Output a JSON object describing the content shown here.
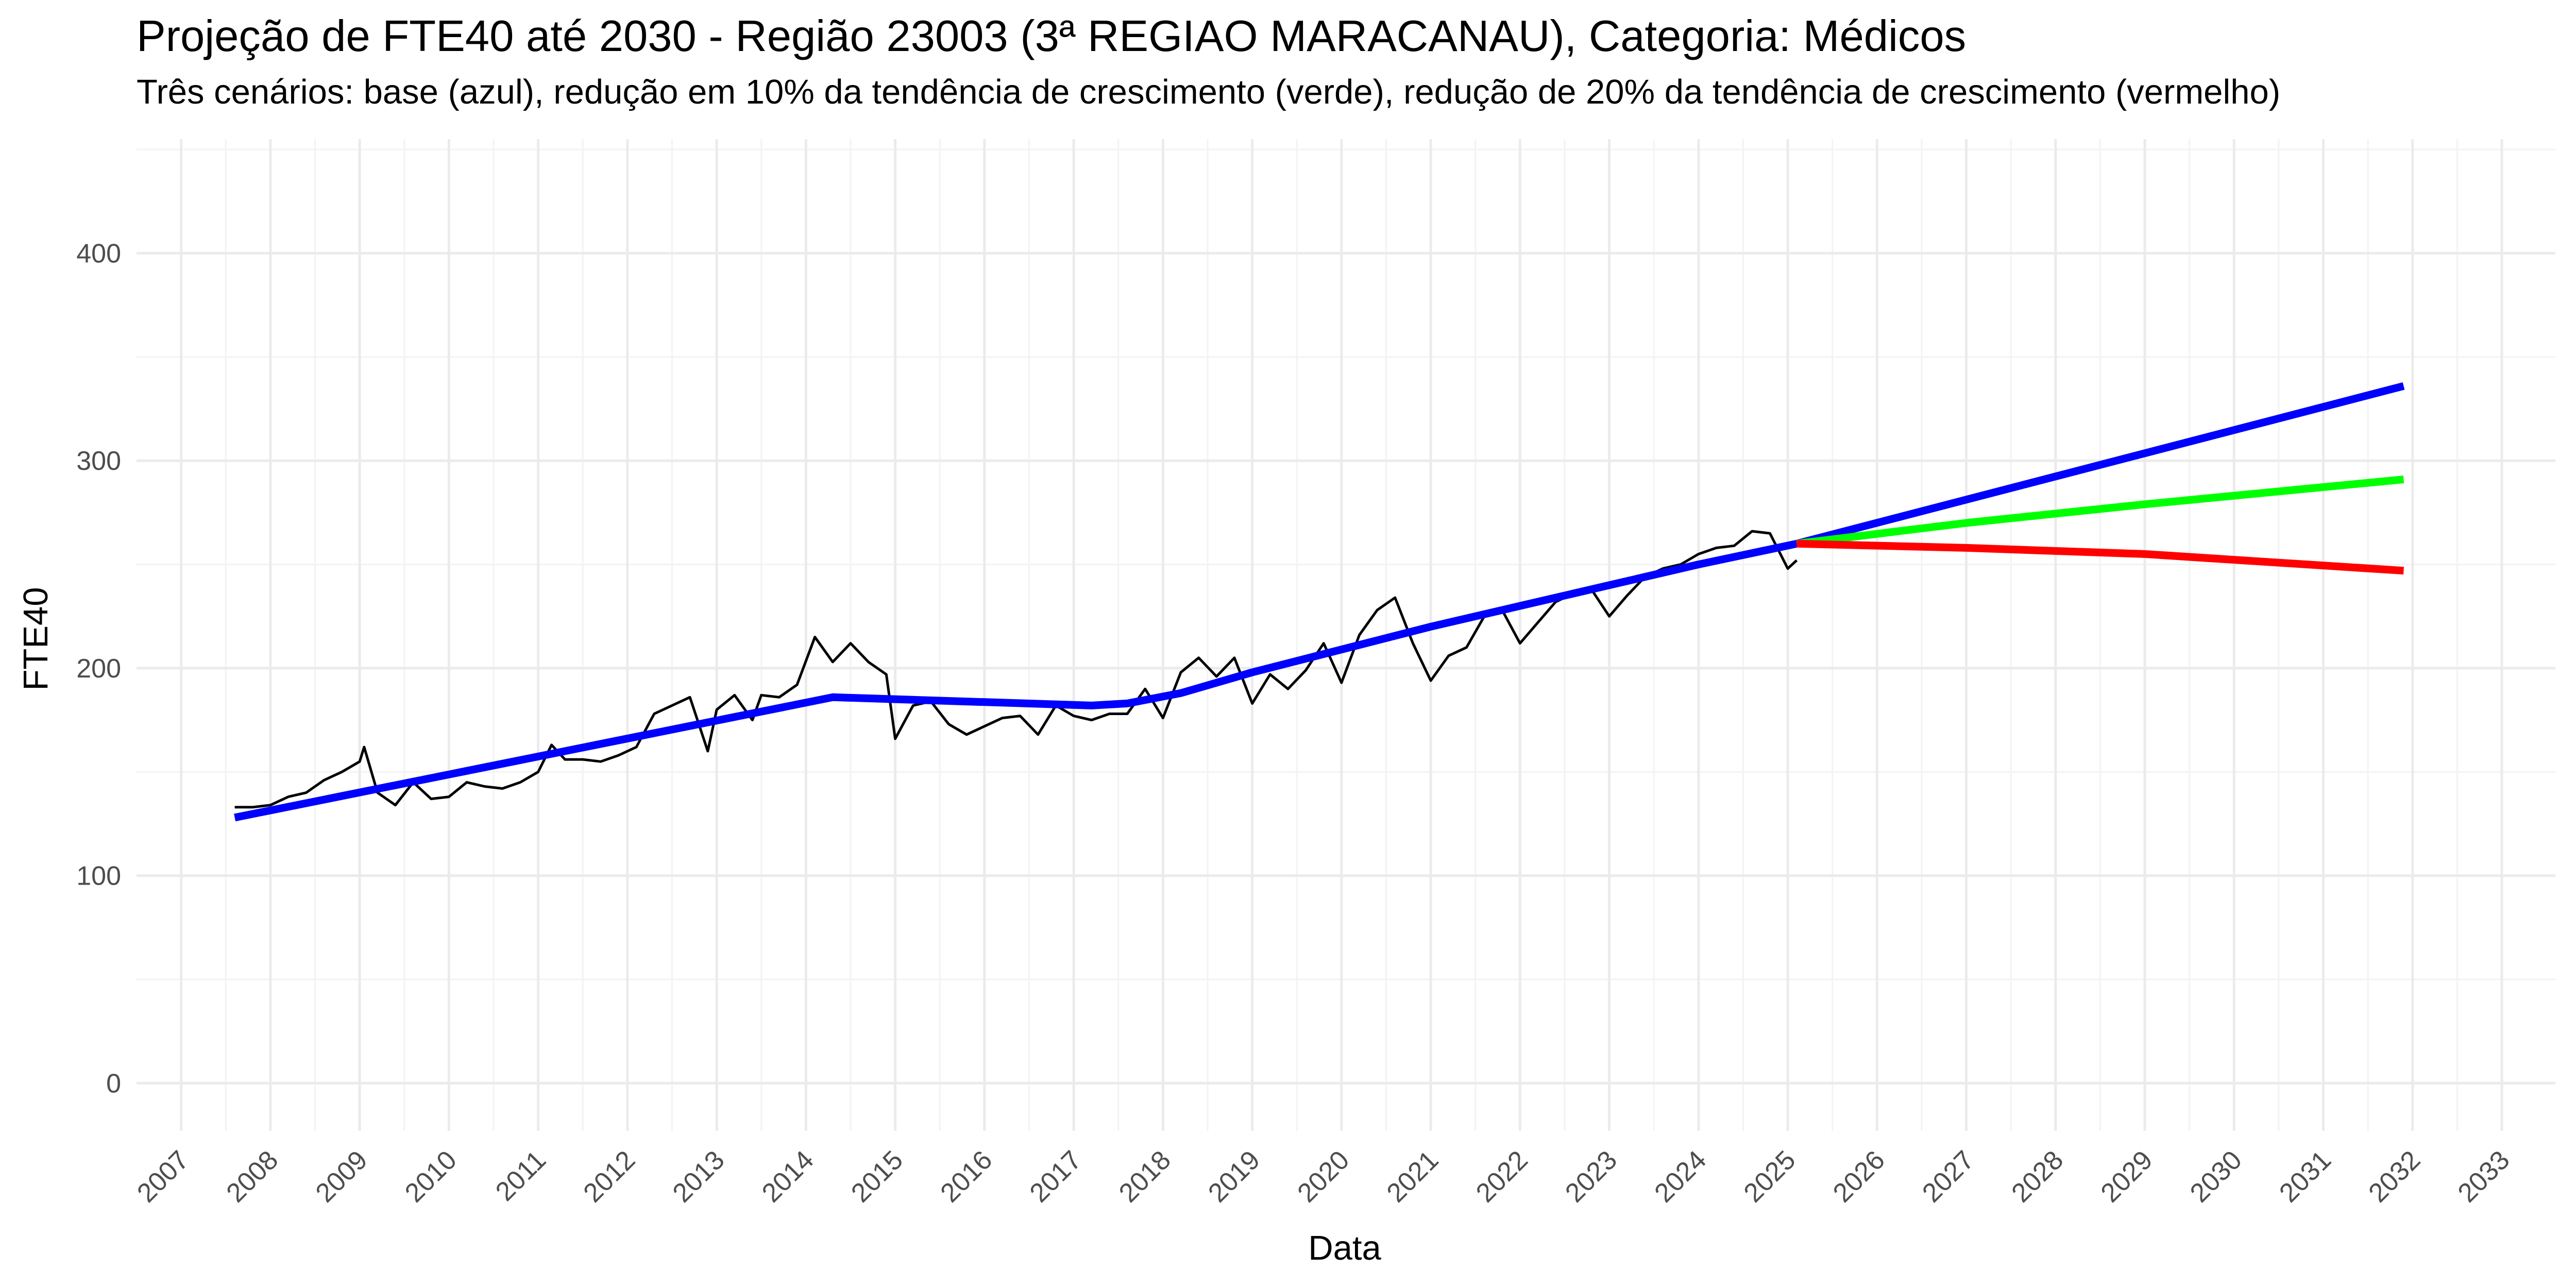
{
  "chart_data": {
    "type": "line",
    "title": "Projeção de FTE40 até 2030 - Região 23003 (3ª REGIAO MARACANAU), Categoria: Médicos",
    "subtitle": "Três cenários: base (azul), redução em 10% da tendência de crescimento (verde), redução de 20% da tendência de crescimento (vermelho)",
    "xlabel": "Data",
    "ylabel": "FTE40",
    "xlim": [
      2006.5,
      2033.6
    ],
    "ylim": [
      -23,
      455
    ],
    "x_ticks": [
      2007,
      2008,
      2009,
      2010,
      2011,
      2012,
      2013,
      2014,
      2015,
      2016,
      2017,
      2018,
      2019,
      2020,
      2021,
      2022,
      2023,
      2024,
      2025,
      2026,
      2027,
      2028,
      2029,
      2030,
      2031,
      2032,
      2033
    ],
    "x_tick_labels": [
      "2007",
      "2008",
      "2009",
      "2010",
      "2011",
      "2012",
      "2013",
      "2014",
      "2015",
      "2016",
      "2017",
      "2018",
      "2019",
      "2020",
      "2021",
      "2022",
      "2023",
      "2024",
      "2025",
      "2026",
      "2027",
      "2028",
      "2029",
      "2030",
      "2031",
      "2032",
      "2033"
    ],
    "y_ticks": [
      0,
      100,
      200,
      300,
      400
    ],
    "y_tick_labels": [
      "0",
      "100",
      "200",
      "300",
      "400"
    ],
    "grid": true,
    "series": [
      {
        "color": "#000000",
        "stroke": "thin",
        "x": [
          2007.6,
          2007.8,
          2008.0,
          2008.2,
          2008.4,
          2008.6,
          2008.8,
          2009.0,
          2009.05,
          2009.2,
          2009.4,
          2009.6,
          2009.8,
          2010.0,
          2010.2,
          2010.4,
          2010.6,
          2010.8,
          2011.0,
          2011.15,
          2011.3,
          2011.5,
          2011.7,
          2011.9,
          2012.1,
          2012.3,
          2012.5,
          2012.7,
          2012.9,
          2013.0,
          2013.2,
          2013.4,
          2013.5,
          2013.7,
          2013.9,
          2014.1,
          2014.3,
          2014.5,
          2014.7,
          2014.9,
          2015.0,
          2015.2,
          2015.4,
          2015.6,
          2015.8,
          2016.0,
          2016.2,
          2016.4,
          2016.6,
          2016.8,
          2017.0,
          2017.2,
          2017.4,
          2017.6,
          2017.8,
          2018.0,
          2018.2,
          2018.4,
          2018.6,
          2018.8,
          2019.0,
          2019.2,
          2019.4,
          2019.6,
          2019.8,
          2020.0,
          2020.2,
          2020.4,
          2020.6,
          2020.8,
          2021.0,
          2021.2,
          2021.4,
          2021.6,
          2021.8,
          2022.0,
          2022.2,
          2022.4,
          2022.6,
          2022.8,
          2023.0,
          2023.2,
          2023.4,
          2023.6,
          2023.8,
          2024.0,
          2024.2,
          2024.4,
          2024.6,
          2024.8,
          2025.0,
          2025.1
        ],
        "values": [
          133,
          133,
          134,
          138,
          140,
          146,
          150,
          155,
          162,
          140,
          134,
          145,
          137,
          138,
          145,
          143,
          142,
          145,
          150,
          163,
          156,
          156,
          155,
          158,
          162,
          178,
          182,
          186,
          160,
          180,
          187,
          175,
          187,
          186,
          192,
          215,
          203,
          212,
          203,
          197,
          166,
          182,
          184,
          173,
          168,
          172,
          176,
          177,
          168,
          182,
          177,
          175,
          178,
          178,
          190,
          176,
          198,
          205,
          196,
          205,
          183,
          197,
          190,
          199,
          212,
          193,
          216,
          228,
          234,
          212,
          194,
          206,
          210,
          225,
          228,
          212,
          222,
          232,
          236,
          238,
          225,
          235,
          244,
          248,
          250,
          255,
          258,
          259,
          266,
          265,
          248,
          252
        ]
      },
      {
        "color": "#0000ff",
        "stroke": "thick",
        "x": [
          2007.6,
          2014.3,
          2017.2,
          2017.6,
          2018.2,
          2019.0,
          2020.0,
          2021.0,
          2022.0,
          2023.0,
          2024.0,
          2025.1,
          2031.9
        ],
        "values": [
          128,
          186,
          182,
          183,
          188,
          198,
          209,
          220,
          230,
          240,
          250,
          260,
          336
        ]
      },
      {
        "color": "#00ff00",
        "stroke": "thick",
        "x": [
          2025.1,
          2027.0,
          2029.0,
          2031.9
        ],
        "values": [
          260,
          270,
          279,
          291
        ]
      },
      {
        "color": "#ff0000",
        "stroke": "thick",
        "x": [
          2025.1,
          2027.0,
          2029.0,
          2031.9
        ],
        "values": [
          260,
          258,
          255,
          247
        ]
      }
    ]
  }
}
